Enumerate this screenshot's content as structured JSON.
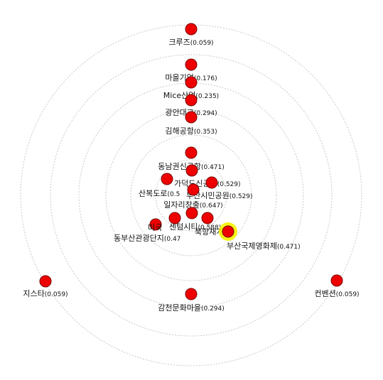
{
  "colors": {
    "node_fill": "#ee0000",
    "node_stroke": "#7a0000",
    "ring": "#c8c8c8",
    "highlight": "#f6f200",
    "text": "#111111"
  },
  "nodes": [
    {
      "name": "크루즈",
      "value": "(0.059)"
    },
    {
      "name": "마을기업",
      "value": "(0.176)"
    },
    {
      "name": "Mice산업",
      "value": "(0.235)"
    },
    {
      "name": "광안대교",
      "value": "(0.294)"
    },
    {
      "name": "김해공항",
      "value": "(0.353)"
    },
    {
      "name": "동남권신공항",
      "value": "(0.471)"
    },
    {
      "name": "가덕도신공항",
      "value": "(0.529)"
    },
    {
      "name": "산복도로",
      "value": "(0.5"
    },
    {
      "name": "부산시민공원",
      "value": "(0.529)"
    },
    {
      "name": "일자리창출",
      "value": "(0.647)"
    },
    {
      "name": "미국",
      "value": ""
    },
    {
      "name": "센텀시티",
      "value": "(0.588)"
    },
    {
      "name": "북항재개발",
      "value": ""
    },
    {
      "name": "동부산관광단지",
      "value": "(0.47"
    },
    {
      "name": "부산국제영화제",
      "value": "(0.471)"
    },
    {
      "name": "지스타",
      "value": "(0.059)"
    },
    {
      "name": "컨벤션",
      "value": "(0.059)"
    },
    {
      "name": "감천문화마을",
      "value": "(0.294)"
    }
  ]
}
